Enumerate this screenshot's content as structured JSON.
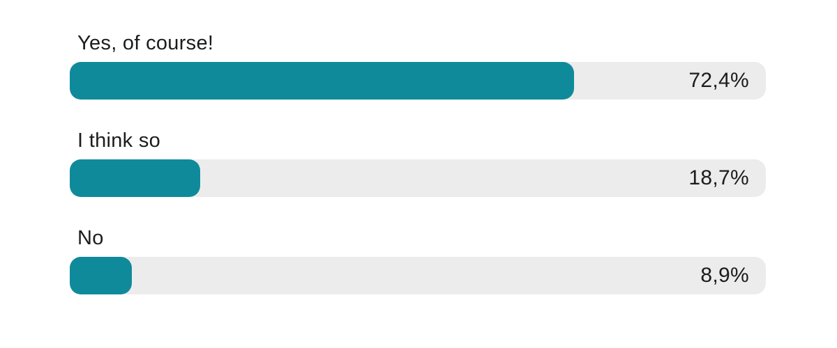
{
  "chart_data": {
    "type": "bar",
    "orientation": "horizontal",
    "title": "",
    "xlabel": "",
    "ylabel": "",
    "xlim": [
      0,
      100
    ],
    "grid": false,
    "legend": false,
    "categories": [
      "Yes, of course!",
      "I think so",
      "No"
    ],
    "values": [
      72.4,
      18.7,
      8.9
    ],
    "value_labels": [
      "72,4%",
      "18,7%",
      "8,9%"
    ],
    "bar_color": "#0f8a9b",
    "track_color": "#ececec",
    "text_color": "#1c1c1c",
    "background_color": "#ffffff",
    "rows": [
      {
        "label": "Yes, of course!",
        "value": 72.4,
        "value_label": "72,4%"
      },
      {
        "label": "I think so",
        "value": 18.7,
        "value_label": "18,7%"
      },
      {
        "label": "No",
        "value": 8.9,
        "value_label": "8,9%"
      }
    ]
  }
}
